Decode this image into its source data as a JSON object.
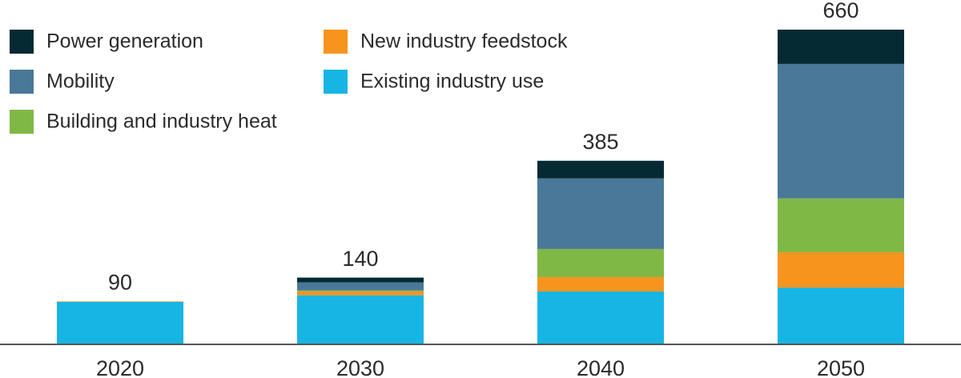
{
  "chart_data": {
    "type": "stacked_bar",
    "categories": [
      "2020",
      "2030",
      "2040",
      "2050"
    ],
    "totals": [
      90,
      140,
      385,
      660
    ],
    "series": [
      {
        "name": "Existing industry use",
        "color": "#17b5e3",
        "values": [
          89,
          103,
          111,
          119
        ]
      },
      {
        "name": "New industry feedstock",
        "color": "#f7941d",
        "values": [
          1,
          8,
          30,
          74
        ]
      },
      {
        "name": "Building and industry heat",
        "color": "#80b846",
        "values": [
          0,
          2,
          59,
          113
        ]
      },
      {
        "name": "Mobility",
        "color": "#4a7899",
        "values": [
          0,
          17,
          148,
          282
        ]
      },
      {
        "name": "Power generation",
        "color": "#062a33",
        "values": [
          0,
          10,
          37,
          72
        ]
      }
    ]
  }
}
